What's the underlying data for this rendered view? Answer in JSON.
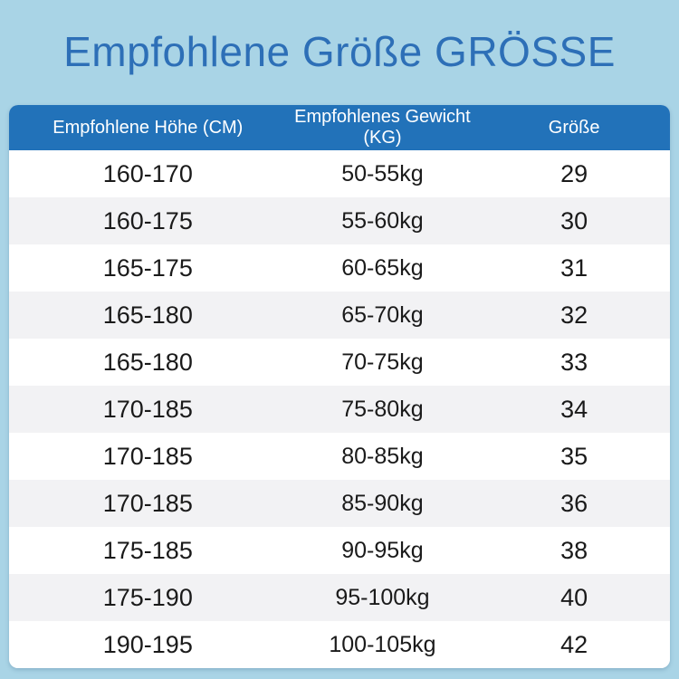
{
  "title": "Empfohlene Größe GRÖSSE",
  "table": {
    "headers": [
      "Empfohlene Höhe (CM)",
      "Empfohlenes Gewicht (KG)",
      "Größe"
    ],
    "rows": [
      {
        "height": "160-170",
        "weight": "50-55kg",
        "size": "29"
      },
      {
        "height": "160-175",
        "weight": "55-60kg",
        "size": "30"
      },
      {
        "height": "165-175",
        "weight": "60-65kg",
        "size": "31"
      },
      {
        "height": "165-180",
        "weight": "65-70kg",
        "size": "32"
      },
      {
        "height": "165-180",
        "weight": "70-75kg",
        "size": "33"
      },
      {
        "height": "170-185",
        "weight": "75-80kg",
        "size": "34"
      },
      {
        "height": "170-185",
        "weight": "80-85kg",
        "size": "35"
      },
      {
        "height": "170-185",
        "weight": "85-90kg",
        "size": "36"
      },
      {
        "height": "175-185",
        "weight": "90-95kg",
        "size": "38"
      },
      {
        "height": "175-190",
        "weight": "95-100kg",
        "size": "40"
      },
      {
        "height": "190-195",
        "weight": "100-105kg",
        "size": "42"
      }
    ]
  },
  "colors": {
    "background": "#a9d4e6",
    "header_bg": "#2272b9",
    "title_text": "#2d6fb7",
    "row_alt_bg": "#f2f2f4",
    "header_text": "#ffffff",
    "body_text": "#1a1a1a"
  },
  "chart_data": {
    "type": "table",
    "title": "Empfohlene Größe GRÖSSE",
    "columns": [
      "Empfohlene Höhe (CM)",
      "Empfohlenes Gewicht (KG)",
      "Größe"
    ],
    "rows": [
      [
        "160-170",
        "50-55kg",
        "29"
      ],
      [
        "160-175",
        "55-60kg",
        "30"
      ],
      [
        "165-175",
        "60-65kg",
        "31"
      ],
      [
        "165-180",
        "65-70kg",
        "32"
      ],
      [
        "165-180",
        "70-75kg",
        "33"
      ],
      [
        "170-185",
        "75-80kg",
        "34"
      ],
      [
        "170-185",
        "80-85kg",
        "35"
      ],
      [
        "170-185",
        "85-90kg",
        "36"
      ],
      [
        "175-185",
        "90-95kg",
        "38"
      ],
      [
        "175-190",
        "95-100kg",
        "40"
      ],
      [
        "190-195",
        "100-105kg",
        "42"
      ]
    ],
    "layout_hints": {
      "striped_rows": true,
      "stripe_start": "white",
      "header_style": "solid blue bar, white centered text",
      "alignment": "all columns centered"
    }
  }
}
